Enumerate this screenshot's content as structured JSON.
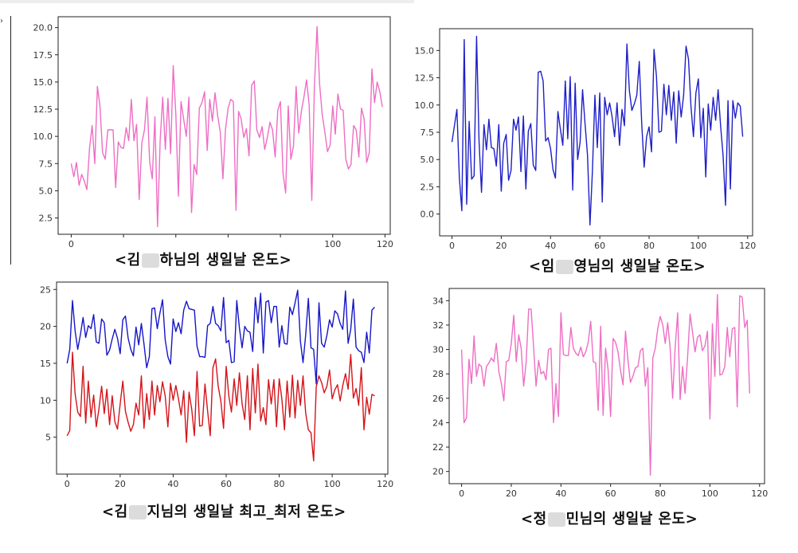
{
  "captions": {
    "c1_pre": "<김",
    "c1_post": "하님의 생일날 온도>",
    "c2_pre": "<임",
    "c2_post": "영님의 생일날 온도>",
    "c3_pre": "<김",
    "c3_post": "지님의 생일날 최고_최저 온도>",
    "c4_pre": "<정",
    "c4_post": "민님의 생일날 온도>"
  },
  "chart_data": [
    {
      "type": "line",
      "xlim": [
        -5,
        122
      ],
      "ylim": [
        1,
        21
      ],
      "xticks": [
        0,
        20,
        40,
        60,
        80,
        100,
        120
      ],
      "xtick_labels": [
        "0",
        "",
        "",
        "",
        "",
        "100",
        "120"
      ],
      "yticks": [
        2.5,
        5.0,
        7.5,
        10.0,
        12.5,
        15.0,
        17.5,
        20.0
      ],
      "ytick_labels": [
        "2.5",
        "5.0",
        "7.5",
        "10.0",
        "12.5",
        "15.0",
        "17.5",
        "20.0"
      ],
      "grid": false,
      "series": [
        {
          "color": "#ee6ec4",
          "values": [
            7.5,
            6.3,
            7.6,
            5.5,
            6.5,
            5.9,
            5.1,
            8.9,
            11.0,
            7.5,
            14.6,
            12.8,
            8.5,
            7.9,
            10.6,
            10.6,
            10.6,
            5.3,
            9.5,
            9.0,
            8.9,
            10.8,
            9.6,
            13.4,
            9.6,
            11.1,
            4.2,
            9.4,
            10.6,
            13.6,
            7.7,
            6.1,
            11.8,
            1.7,
            9.6,
            13.6,
            8.8,
            13.5,
            8.4,
            16.5,
            12.0,
            4.5,
            13.2,
            11.6,
            10.0,
            13.6,
            3.0,
            7.4,
            6.5,
            12.6,
            13.1,
            14.1,
            8.7,
            13.4,
            11.4,
            14.0,
            11.9,
            10.4,
            6.1,
            10.6,
            12.6,
            13.4,
            13.2,
            3.2,
            12.3,
            11.6,
            9.9,
            10.7,
            8.2,
            14.7,
            15.1,
            10.6,
            9.9,
            10.9,
            8.8,
            9.9,
            11.3,
            10.6,
            8.1,
            12.4,
            13.2,
            6.6,
            4.8,
            12.8,
            7.9,
            9.1,
            14.6,
            10.3,
            12.3,
            13.6,
            15.2,
            12.9,
            4.1,
            14.6,
            20.1,
            14.8,
            12.0,
            10.4,
            8.6,
            9.2,
            12.8,
            10.2,
            13.9,
            12.5,
            12.4,
            7.9,
            7.0,
            7.4,
            11.0,
            10.6,
            8.1,
            12.6,
            11.6,
            7.6,
            8.5,
            16.2,
            13.1,
            15.0,
            14.1,
            12.7
          ]
        }
      ]
    },
    {
      "type": "line",
      "xlim": [
        -5,
        122
      ],
      "ylim": [
        -2,
        17
      ],
      "xticks": [
        0,
        20,
        40,
        60,
        80,
        100,
        120
      ],
      "xtick_labels": [
        "0",
        "20",
        "40",
        "60",
        "80",
        "100",
        "120"
      ],
      "yticks": [
        0.0,
        2.5,
        5.0,
        7.5,
        10.0,
        12.5,
        15.0
      ],
      "ytick_labels": [
        "0.0",
        "2.5",
        "5.0",
        "7.5",
        "10.0",
        "12.5",
        "15.0"
      ],
      "grid": false,
      "series": [
        {
          "color": "#1f1fc8",
          "values": [
            6.6,
            8.1,
            9.6,
            3.3,
            0.3,
            16.0,
            0.9,
            8.5,
            3.2,
            3.5,
            16.3,
            6.7,
            2.0,
            8.2,
            5.9,
            8.7,
            6.1,
            6.0,
            4.4,
            8.2,
            2.1,
            6.5,
            7.3,
            3.1,
            4.0,
            8.7,
            7.7,
            8.9,
            3.9,
            9.0,
            2.3,
            7.6,
            8.3,
            4.5,
            4.0,
            13.0,
            13.1,
            12.2,
            6.7,
            7.0,
            6.0,
            4.1,
            3.3,
            9.4,
            7.8,
            6.3,
            12.2,
            6.9,
            12.6,
            2.2,
            12.0,
            5.0,
            6.6,
            11.4,
            8.3,
            5.4,
            -1.0,
            4.0,
            10.9,
            6.1,
            11.1,
            1.1,
            10.7,
            9.1,
            10.2,
            8.9,
            7.1,
            10.2,
            6.3,
            9.6,
            8.1,
            15.6,
            11.3,
            9.5,
            10.1,
            10.9,
            14.0,
            8.4,
            4.3,
            7.1,
            8.0,
            5.7,
            15.1,
            12.6,
            7.5,
            7.6,
            11.9,
            9.1,
            11.8,
            8.6,
            11.2,
            6.5,
            11.3,
            8.9,
            10.9,
            15.4,
            14.2,
            9.9,
            7.1,
            11.1,
            12.4,
            7.0,
            9.7,
            3.4,
            10.1,
            7.7,
            10.7,
            8.6,
            11.4,
            8.1,
            5.4,
            0.8,
            10.4,
            2.3,
            10.4,
            8.8,
            10.2,
            9.9,
            7.1
          ]
        }
      ]
    },
    {
      "type": "line",
      "xlim": [
        -4,
        121
      ],
      "ylim": [
        0,
        26
      ],
      "xticks": [
        0,
        20,
        40,
        60,
        80,
        100,
        120
      ],
      "xtick_labels": [
        "0",
        "20",
        "40",
        "60",
        "80",
        "100",
        "120"
      ],
      "yticks": [
        5,
        10,
        15,
        20,
        25
      ],
      "ytick_labels": [
        "5",
        "10",
        "15",
        "20",
        "25"
      ],
      "grid": false,
      "series": [
        {
          "color": "#1616c8",
          "values": [
            15.0,
            16.9,
            23.5,
            19.4,
            16.9,
            18.9,
            21.2,
            18.5,
            20.1,
            19.7,
            21.6,
            17.9,
            17.7,
            21.0,
            20.5,
            16.1,
            16.8,
            18.3,
            19.6,
            18.4,
            16.3,
            20.9,
            21.4,
            18.4,
            16.9,
            16.0,
            19.9,
            17.5,
            20.4,
            17.6,
            14.4,
            15.9,
            22.4,
            22.5,
            19.7,
            21.8,
            23.6,
            18.2,
            15.9,
            14.9,
            21.0,
            19.3,
            20.5,
            19.0,
            22.2,
            23.4,
            22.4,
            22.3,
            22.2,
            17.3,
            15.9,
            15.9,
            15.8,
            20.1,
            20.4,
            22.7,
            20.4,
            20.1,
            19.4,
            23.9,
            17.8,
            18.1,
            15.1,
            15.2,
            23.5,
            19.8,
            17.1,
            20.0,
            19.4,
            19.2,
            16.6,
            23.9,
            20.5,
            24.5,
            16.4,
            23.3,
            23.5,
            20.5,
            22.7,
            22.7,
            17.2,
            20.1,
            17.7,
            17.6,
            22.6,
            21.6,
            23.2,
            24.9,
            18.0,
            15.1,
            18.8,
            23.8,
            17.1,
            16.9,
            12.2,
            23.2,
            17.7,
            17.2,
            18.8,
            20.9,
            19.9,
            22.1,
            21.7,
            20.4,
            19.6,
            24.8,
            17.7,
            19.6,
            23.7,
            17.2,
            16.7,
            16.5,
            15.1,
            19.2,
            16.4,
            22.2,
            22.6
          ]
        },
        {
          "color": "#d4141a",
          "values": [
            5.2,
            5.9,
            16.5,
            10.9,
            8.4,
            7.8,
            14.6,
            6.9,
            12.6,
            7.7,
            10.7,
            6.4,
            8.8,
            11.9,
            8.2,
            11.5,
            6.7,
            10.6,
            7.1,
            6.1,
            9.5,
            12.6,
            8.5,
            7.0,
            5.8,
            6.7,
            9.6,
            8.0,
            13.3,
            6.2,
            10.9,
            7.4,
            12.6,
            8.0,
            12.0,
            9.8,
            12.5,
            10.6,
            6.4,
            12.3,
            10.0,
            12.0,
            10.2,
            8.0,
            11.3,
            4.3,
            11.1,
            8.8,
            5.2,
            13.9,
            6.5,
            6.6,
            12.2,
            8.5,
            5.2,
            14.4,
            15.6,
            11.9,
            9.9,
            6.2,
            14.6,
            10.6,
            8.4,
            12.9,
            9.3,
            13.7,
            9.5,
            7.4,
            13.3,
            6.0,
            14.3,
            8.3,
            14.9,
            7.2,
            9.0,
            6.7,
            12.8,
            9.5,
            12.8,
            6.4,
            12.9,
            10.2,
            6.0,
            12.6,
            7.7,
            13.4,
            7.6,
            12.7,
            9.3,
            13.3,
            8.3,
            6.0,
            5.6,
            1.8,
            11.8,
            13.3,
            12.4,
            11.0,
            11.9,
            14.1,
            10.2,
            11.4,
            12.1,
            9.9,
            12.0,
            13.6,
            11.5,
            16.2,
            10.3,
            11.6,
            9.3,
            14.4,
            6.0,
            10.4,
            8.1,
            10.8,
            10.6
          ]
        }
      ]
    },
    {
      "type": "line",
      "xlim": [
        -5,
        122
      ],
      "ylim": [
        19,
        35
      ],
      "xticks": [
        0,
        20,
        40,
        60,
        80,
        100,
        120
      ],
      "xtick_labels": [
        "0",
        "20",
        "40",
        "60",
        "80",
        "100",
        "120"
      ],
      "yticks": [
        20,
        22,
        24,
        26,
        28,
        30,
        32,
        34
      ],
      "ytick_labels": [
        "20",
        "22",
        "24",
        "26",
        "28",
        "30",
        "32",
        "34"
      ],
      "grid": false,
      "series": [
        {
          "color": "#ee6ec4",
          "values": [
            30.0,
            24.0,
            24.4,
            29.2,
            27.2,
            31.1,
            27.8,
            28.8,
            28.6,
            27.0,
            28.6,
            28.9,
            29.3,
            29.0,
            30.5,
            28.2,
            27.2,
            25.8,
            29.0,
            29.1,
            30.5,
            32.8,
            29.0,
            31.2,
            30.1,
            27.0,
            29.0,
            33.3,
            33.3,
            30.2,
            27.0,
            29.1,
            28.0,
            28.2,
            27.5,
            30.0,
            30.1,
            24.0,
            27.2,
            24.5,
            33.0,
            29.6,
            29.5,
            29.5,
            31.8,
            30.1,
            29.7,
            29.5,
            30.2,
            29.4,
            29.8,
            30.6,
            32.3,
            29.0,
            28.9,
            25.0,
            31.9,
            24.6,
            30.1,
            28.3,
            24.5,
            30.9,
            30.6,
            29.8,
            28.3,
            27.1,
            31.5,
            29.1,
            27.3,
            27.8,
            28.5,
            28.6,
            29.9,
            30.1,
            27.0,
            28.5,
            19.7,
            29.3,
            30.1,
            31.7,
            32.7,
            32.0,
            30.5,
            32.2,
            30.1,
            26.0,
            30.1,
            33.0,
            25.9,
            28.6,
            26.4,
            29.3,
            32.9,
            31.4,
            29.8,
            31.0,
            31.2,
            29.9,
            30.3,
            31.5,
            24.3,
            32.1,
            27.8,
            34.5,
            27.9,
            28.0,
            28.6,
            31.8,
            29.4,
            31.7,
            31.8,
            25.3,
            34.4,
            34.3,
            31.8,
            32.4,
            26.4
          ]
        }
      ]
    }
  ]
}
